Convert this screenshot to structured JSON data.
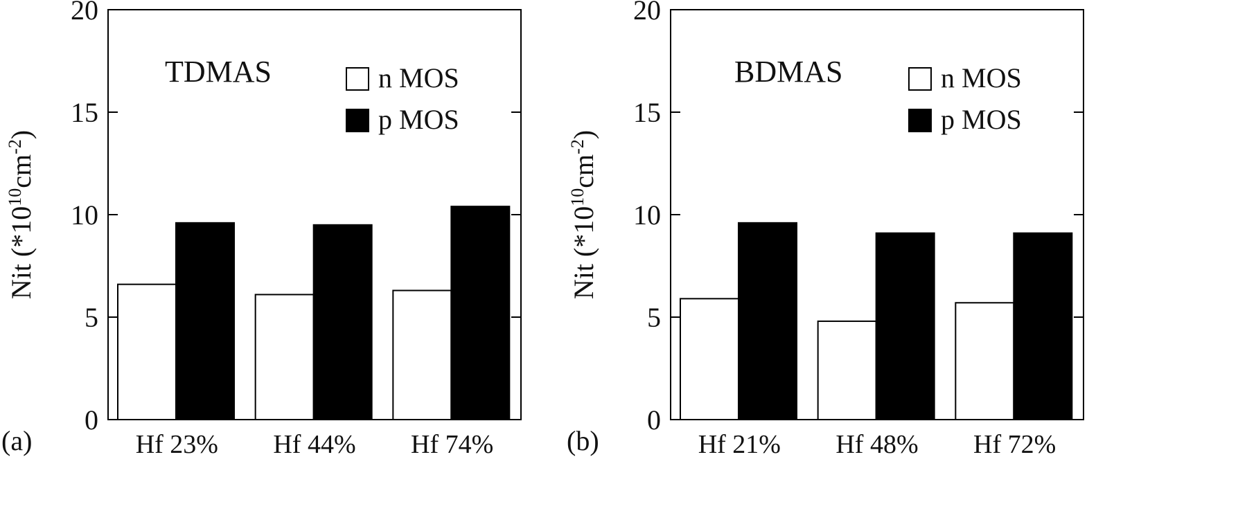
{
  "chart_data": [
    {
      "type": "bar",
      "panel_label": "(a)",
      "title": "TDMAS",
      "ylabel": "Nit (*10^10cm^-2)",
      "ylabel_parts": {
        "main": "Nit (*10",
        "exp1": "10",
        "mid": "cm",
        "exp2": "-2",
        "end": ")"
      },
      "ylim": [
        0,
        20
      ],
      "yticks": [
        0,
        5,
        10,
        15,
        20
      ],
      "categories": [
        "Hf 23%",
        "Hf 44%",
        "Hf 74%"
      ],
      "series": [
        {
          "name": "n MOS",
          "color": "#ffffff",
          "values": [
            6.6,
            6.1,
            6.3
          ]
        },
        {
          "name": "p MOS",
          "color": "#000000",
          "values": [
            9.6,
            9.5,
            10.4
          ]
        }
      ],
      "legend": "top-right",
      "grid": false
    },
    {
      "type": "bar",
      "panel_label": "(b)",
      "title": "BDMAS",
      "ylabel": "Nit (*10^10cm^-2)",
      "ylabel_parts": {
        "main": "Nit (*10",
        "exp1": "10",
        "mid": "cm",
        "exp2": "-2",
        "end": ")"
      },
      "ylim": [
        0,
        20
      ],
      "yticks": [
        0,
        5,
        10,
        15,
        20
      ],
      "categories": [
        "Hf 21%",
        "Hf 48%",
        "Hf 72%"
      ],
      "series": [
        {
          "name": "n MOS",
          "color": "#ffffff",
          "values": [
            5.9,
            4.8,
            5.7
          ]
        },
        {
          "name": "p MOS",
          "color": "#000000",
          "values": [
            9.6,
            9.1,
            9.1
          ]
        }
      ],
      "legend": "top-right",
      "grid": false
    }
  ]
}
